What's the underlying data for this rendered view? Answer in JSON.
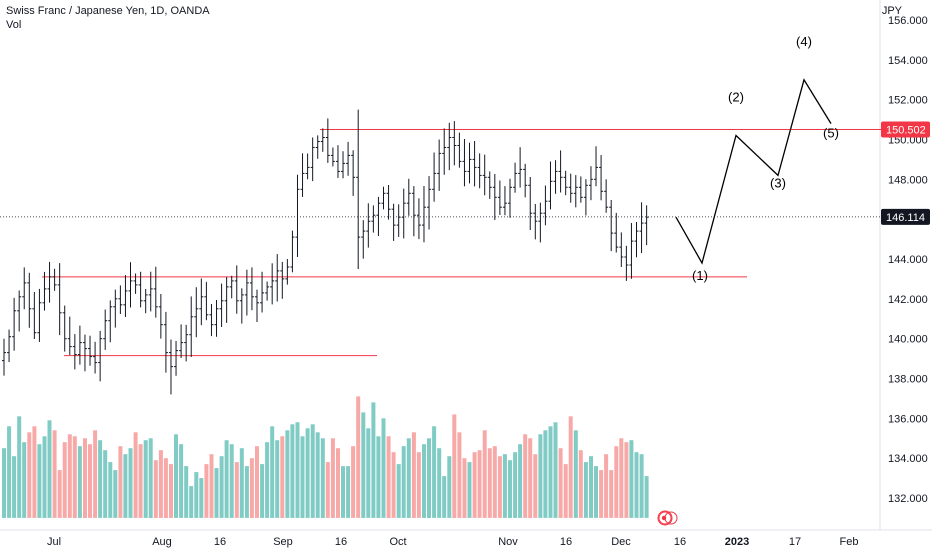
{
  "header": {
    "symbol": "Swiss Franc / Japanese Yen, 1D, OANDA",
    "volume_label": "Vol"
  },
  "axis": {
    "unit": "JPY"
  },
  "colors": {
    "up": "#26a69a",
    "down": "#ef5350",
    "bar": "#131722",
    "level": "#f23645",
    "vol_up": "#80cbc4",
    "vol_down": "#f7a9a7",
    "last_bg": "#131722"
  },
  "chart_data": {
    "type": "bar",
    "instrument": "Swiss Franc / Japanese Yen, 1D, OANDA",
    "ylim": [
      131,
      157
    ],
    "y_ticks": [
      "132.000",
      "134.000",
      "136.000",
      "138.000",
      "140.000",
      "142.000",
      "144.000",
      "146.000",
      "148.000",
      "150.000",
      "152.000",
      "154.000",
      "156.000"
    ],
    "x_ticks": [
      {
        "label": "Jul",
        "x": 54,
        "bold": false
      },
      {
        "label": "Aug",
        "x": 162,
        "bold": false
      },
      {
        "label": "16",
        "x": 220,
        "bold": false
      },
      {
        "label": "Sep",
        "x": 283,
        "bold": false
      },
      {
        "label": "16",
        "x": 341,
        "bold": false
      },
      {
        "label": "Oct",
        "x": 398,
        "bold": false
      },
      {
        "label": "Nov",
        "x": 508,
        "bold": false
      },
      {
        "label": "16",
        "x": 566,
        "bold": false
      },
      {
        "label": "Dec",
        "x": 621,
        "bold": false
      },
      {
        "label": "16",
        "x": 680,
        "bold": false
      },
      {
        "label": "2023",
        "x": 737,
        "bold": true
      },
      {
        "label": "17",
        "x": 795,
        "bold": false
      },
      {
        "label": "Feb",
        "x": 849,
        "bold": false
      }
    ],
    "price_badges": [
      {
        "value": "150.502",
        "price": 150.502,
        "bg": "#f23645"
      },
      {
        "value": "146.114",
        "price": 146.114,
        "bg": "#131722"
      }
    ],
    "levels": [
      {
        "price": 150.5,
        "x1": 320,
        "x2": 882
      },
      {
        "price": 143.1,
        "x1": 42,
        "x2": 747
      },
      {
        "price": 139.15,
        "x1": 64,
        "x2": 377
      }
    ],
    "wave_labels": [
      {
        "text": "(1)",
        "x": 700,
        "price": 142.95
      },
      {
        "text": "(2)",
        "x": 736,
        "price": 151.9
      },
      {
        "text": "(3)",
        "x": 778,
        "price": 147.6
      },
      {
        "text": "(4)",
        "x": 804,
        "price": 154.7
      },
      {
        "text": "(5)",
        "x": 831,
        "price": 150.1
      }
    ],
    "projection": [
      [
        676,
        146.1
      ],
      [
        702,
        143.8
      ],
      [
        736,
        150.2
      ],
      [
        778,
        148.2
      ],
      [
        804,
        153.0
      ],
      [
        831,
        150.8
      ]
    ],
    "closes": [
      139.3,
      140.1,
      141.4,
      142.1,
      142.8,
      141.5,
      140.3,
      141.8,
      142.5,
      143.1,
      142.7,
      141.3,
      140.0,
      139.6,
      139.2,
      139.8,
      139.5,
      139.1,
      138.8,
      140.0,
      140.9,
      141.6,
      142.0,
      141.7,
      142.4,
      142.9,
      142.7,
      141.9,
      142.2,
      142.5,
      141.6,
      140.7,
      139.3,
      138.6,
      139.4,
      139.8,
      140.2,
      141.1,
      141.5,
      142.1,
      141.2,
      140.7,
      141.5,
      141.9,
      142.6,
      142.9,
      141.9,
      142.2,
      142.8,
      142.1,
      141.8,
      142.3,
      142.6,
      142.9,
      143.4,
      143.0,
      143.6,
      145.1,
      147.5,
      148.3,
      148.6,
      149.6,
      149.9,
      150.1,
      149.2,
      148.9,
      148.4,
      148.8,
      149.2,
      148.1,
      145.1,
      145.4,
      145.9,
      146.2,
      146.8,
      147.3,
      146.5,
      145.7,
      146.1,
      146.8,
      147.3,
      146.2,
      145.7,
      146.6,
      147.5,
      148.3,
      149.3,
      149.6,
      150.1,
      149.7,
      148.9,
      148.4,
      149.0,
      148.6,
      148.2,
      148.1,
      147.6,
      147.1,
      146.6,
      146.8,
      147.6,
      148.3,
      148.5,
      147.7,
      146.3,
      145.9,
      146.3,
      146.9,
      147.9,
      148.4,
      148.1,
      147.6,
      147.3,
      147.6,
      147.1,
      147.7,
      148.0,
      148.6,
      147.4,
      146.6,
      145.3,
      144.6,
      144.1,
      143.7,
      144.9,
      145.4,
      145.8,
      146.1
    ],
    "volumes": [
      134.5,
      135.6,
      134.1,
      136.1,
      134.8,
      135.3,
      135.6,
      134.7,
      135.1,
      135.9,
      135.4,
      133.4,
      134.8,
      135.2,
      135.1,
      134.6,
      135.0,
      134.7,
      135.4,
      134.9,
      134.4,
      133.8,
      133.4,
      134.6,
      134.2,
      134.5,
      135.3,
      134.7,
      134.9,
      135.0,
      133.9,
      134.4,
      134.0,
      133.7,
      135.2,
      134.7,
      133.6,
      132.6,
      133.3,
      133.0,
      133.7,
      134.2,
      133.5,
      134.1,
      134.9,
      134.7,
      133.8,
      134.5,
      133.6,
      134.0,
      134.6,
      133.7,
      134.8,
      135.6,
      134.9,
      135.1,
      135.4,
      135.7,
      135.8,
      135.1,
      135.5,
      135.7,
      135.3,
      135.0,
      133.8,
      135.0,
      134.5,
      133.6,
      133.6,
      134.6,
      137.1,
      136.3,
      135.5,
      136.8,
      135.1,
      136.0,
      135.1,
      134.3,
      133.7,
      134.6,
      135.0,
      135.3,
      134.3,
      134.7,
      135.0,
      135.6,
      134.5,
      133.1,
      134.1,
      136.2,
      135.3,
      134.0,
      133.8,
      134.3,
      134.4,
      135.4,
      134.5,
      134.6,
      134.1,
      134.2,
      133.9,
      134.3,
      134.7,
      135.2,
      135.0,
      134.2,
      135.2,
      135.4,
      135.6,
      135.8,
      134.5,
      133.7,
      136.1,
      135.4,
      134.4,
      133.8,
      134.1,
      133.6,
      133.4,
      134.2,
      133.4,
      134.6,
      135.0,
      134.8,
      134.9,
      134.3,
      134.2,
      133.1
    ]
  },
  "badge": {
    "icon": "alert-circle-icon"
  }
}
